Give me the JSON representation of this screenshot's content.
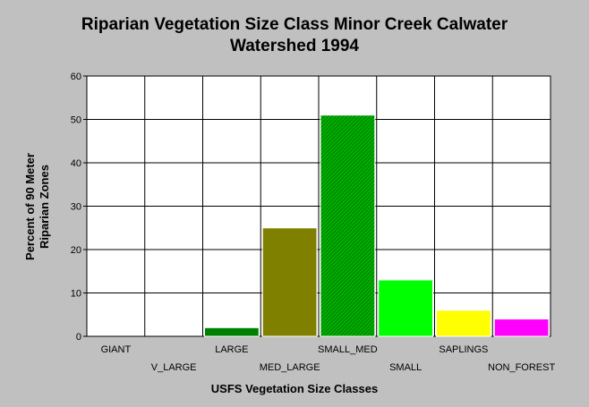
{
  "chart_data": {
    "type": "bar",
    "title_lines": [
      "Riparian Vegetation Size Class Minor Creek Calwater",
      "Watershed 1994"
    ],
    "xlabel": "USFS Vegetation Size Classes",
    "ylabel_lines": [
      "Percent of 90 Meter",
      "Riparian Zones"
    ],
    "ylim": [
      0,
      60
    ],
    "yticks": [
      0,
      10,
      20,
      30,
      40,
      50,
      60
    ],
    "grid": true,
    "categories": [
      "GIANT",
      "V_LARGE",
      "LARGE",
      "MED_LARGE",
      "SMALL_MED",
      "SMALL",
      "SAPLINGS",
      "NON_FOREST"
    ],
    "values": [
      0,
      0,
      2,
      25,
      51,
      13,
      6,
      4
    ],
    "colors": [
      "#000000",
      "#000000",
      "#008000",
      "#808000",
      "#00a000",
      "#00ff00",
      "#ffff00",
      "#ff00ff"
    ],
    "hatched": [
      false,
      false,
      false,
      false,
      true,
      false,
      false,
      false
    ]
  }
}
